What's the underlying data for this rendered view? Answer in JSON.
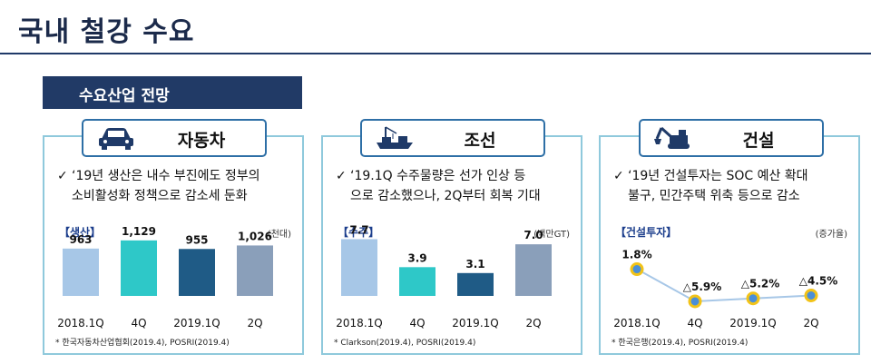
{
  "page": {
    "title": "국내 철강 수요"
  },
  "section": {
    "label": "수요산업 전망"
  },
  "panels": [
    {
      "tag": "자동차",
      "icon": "car-icon",
      "bullet_line1": "‘19년 생산은 내수 부진에도 정부의",
      "bullet_line2": "소비활성화 정책으로 감소세 둔화",
      "subtitle": "【생산】",
      "unit": "(천대)",
      "source": "* 한국자동차산업협회(2019.4), POSRI(2019.4)"
    },
    {
      "tag": "조선",
      "icon": "ship-icon",
      "bullet_line1": "‘19.1Q 수주물량은 선가 인상 등",
      "bullet_line2": "으로 감소했으나, 2Q부터 회복 기대",
      "subtitle": "【수주】",
      "unit": "(백만GT)",
      "source": "* Clarkson(2019.4), POSRI(2019.4)"
    },
    {
      "tag": "건설",
      "icon": "excavator-icon",
      "bullet_line1": "‘19년 건설투자는 SOC 예산 확대",
      "bullet_line2": "불구, 민간주택 위축 등으로 감소",
      "subtitle": "【건설투자】",
      "unit": "(증가율)",
      "source": "* 한국은행(2019.4), POSRI(2019.4)"
    }
  ],
  "chart_data": [
    {
      "type": "bar",
      "categories": [
        "2018.1Q",
        "4Q",
        "2019.1Q",
        "2Q"
      ],
      "values": [
        963,
        1129,
        955,
        1026
      ],
      "value_labels": [
        "963",
        "1,129",
        "955",
        "1,026"
      ],
      "colors": [
        "#a7c7e7",
        "#2ec8c8",
        "#1f5b86",
        "#8a9fba"
      ],
      "ylim": [
        0,
        1200
      ]
    },
    {
      "type": "bar",
      "categories": [
        "2018.1Q",
        "4Q",
        "2019.1Q",
        "2Q"
      ],
      "values": [
        7.7,
        3.9,
        3.1,
        7.0
      ],
      "value_labels": [
        "7.7",
        "3.9",
        "3.1",
        "7.0"
      ],
      "colors": [
        "#a7c7e7",
        "#2ec8c8",
        "#1f5b86",
        "#8a9fba"
      ],
      "ylim": [
        0,
        8
      ]
    },
    {
      "type": "line",
      "categories": [
        "2018.1Q",
        "4Q",
        "2019.1Q",
        "2Q"
      ],
      "values": [
        1.8,
        -5.9,
        -5.2,
        -4.5
      ],
      "value_labels": [
        "1.8%",
        "△5.9%",
        "△5.2%",
        "△4.5%"
      ],
      "line_color": "#a7c7e7",
      "marker_fill": "#4a8fd8",
      "marker_edge": "#f2c318",
      "ylim": [
        -7,
        3
      ]
    }
  ]
}
